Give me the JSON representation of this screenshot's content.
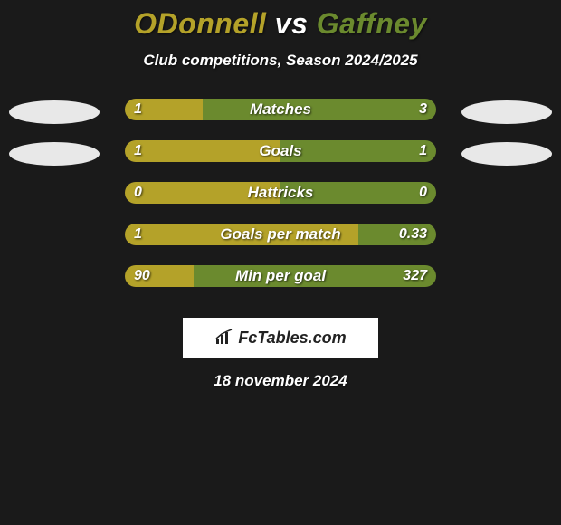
{
  "title": {
    "player1": "ODonnell",
    "vs": "vs",
    "player2": "Gaffney",
    "player1_color": "#b4a229",
    "player2_color": "#6b8a2e",
    "vs_color": "#ffffff",
    "fontsize": 32
  },
  "subtitle": {
    "text": "Club competitions, Season 2024/2025",
    "fontsize": 17,
    "color": "#ffffff"
  },
  "bars": {
    "track_width": 344,
    "track_height": 24,
    "left_color": "#b4a229",
    "right_color": "#6b8a2e",
    "text_color": "#ffffff",
    "ellipse_left_rows": [
      0,
      1
    ],
    "ellipse_right_rows": [
      0,
      1
    ],
    "rows": [
      {
        "label": "Matches",
        "left_val": "1",
        "right_val": "3",
        "left_pct": 25,
        "right_pct": 75
      },
      {
        "label": "Goals",
        "left_val": "1",
        "right_val": "1",
        "left_pct": 50,
        "right_pct": 50
      },
      {
        "label": "Hattricks",
        "left_val": "0",
        "right_val": "0",
        "left_pct": 50,
        "right_pct": 50
      },
      {
        "label": "Goals per match",
        "left_val": "1",
        "right_val": "0.33",
        "left_pct": 75,
        "right_pct": 25
      },
      {
        "label": "Min per goal",
        "left_val": "90",
        "right_val": "327",
        "left_pct": 22,
        "right_pct": 78
      }
    ]
  },
  "logo": {
    "text": "FcTables.com",
    "text_color": "#222222",
    "bg_color": "#ffffff"
  },
  "date": {
    "text": "18 november 2024",
    "fontsize": 17,
    "color": "#ffffff"
  },
  "background_color": "#1a1a1a",
  "ellipse_color": "#e8e8e8"
}
